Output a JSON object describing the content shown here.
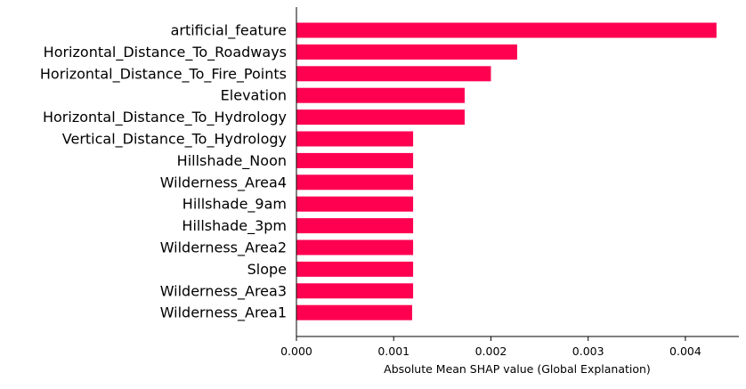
{
  "chart_data": {
    "type": "bar",
    "orientation": "horizontal",
    "categories": [
      "artificial_feature",
      "Horizontal_Distance_To_Roadways",
      "Horizontal_Distance_To_Fire_Points",
      "Elevation",
      "Horizontal_Distance_To_Hydrology",
      "Vertical_Distance_To_Hydrology",
      "Hillshade_Noon",
      "Wilderness_Area4",
      "Hillshade_9am",
      "Hillshade_3pm",
      "Wilderness_Area2",
      "Slope",
      "Wilderness_Area3",
      "Wilderness_Area1"
    ],
    "values": [
      0.00432,
      0.00227,
      0.002,
      0.00173,
      0.00173,
      0.0012,
      0.0012,
      0.0012,
      0.0012,
      0.0012,
      0.0012,
      0.0012,
      0.0012,
      0.00119
    ],
    "title": "",
    "xlabel": "Absolute Mean SHAP value (Global Explanation)",
    "ylabel": "",
    "xlim": [
      0,
      0.00455
    ],
    "xticks": [
      "0.000",
      "0.001",
      "0.002",
      "0.003",
      "0.004"
    ],
    "grid": false,
    "legend": "none",
    "bar_color": "#ff0051"
  }
}
